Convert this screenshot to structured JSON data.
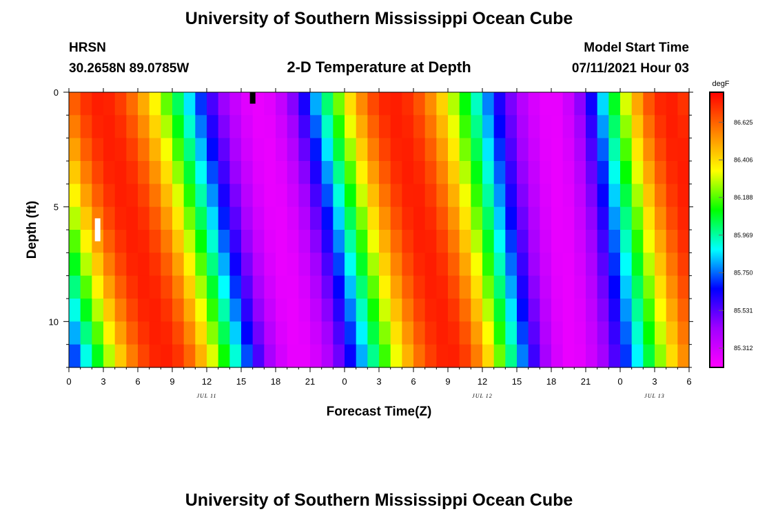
{
  "header": {
    "title": "University of Southern Mississippi Ocean Cube",
    "station": "HRSN",
    "coords": "30.2658N  89.0785W",
    "plot_title": "2-D Temperature at Depth",
    "model_start_label": "Model Start Time",
    "model_start_value": "07/11/2021 Hour 03"
  },
  "footer": {
    "title": "University of Southern Mississippi Ocean Cube"
  },
  "chart_data": {
    "type": "heatmap",
    "xlabel": "Forecast Time(Z)",
    "ylabel": "Depth (ft)",
    "x_unit": "forecast hours",
    "xlim": [
      0,
      54
    ],
    "ylim": [
      0,
      12
    ],
    "y_inverted": true,
    "x_tick_labels": [
      "0",
      "3",
      "6",
      "9",
      "12",
      "15",
      "18",
      "21",
      "0",
      "3",
      "6",
      "9",
      "12",
      "15",
      "18",
      "21",
      "0",
      "3",
      "6"
    ],
    "y_tick_labels": [
      "0",
      "5",
      "10"
    ],
    "y_ticks": [
      0,
      5,
      10
    ],
    "day_labels": [
      {
        "text": "JUL 11",
        "x": 12
      },
      {
        "text": "JUL 12",
        "x": 36
      },
      {
        "text": "JUL 13",
        "x": 51
      }
    ],
    "colorbar": {
      "unit": "degF",
      "min": 85.2,
      "max": 86.8,
      "tick_labels": [
        "86.625",
        "86.406",
        "86.188",
        "85.969",
        "85.750",
        "85.531",
        "85.312"
      ],
      "tick_values": [
        86.625,
        86.406,
        86.188,
        85.969,
        85.75,
        85.531,
        85.312
      ],
      "colormap": [
        "#ff00ff",
        "#a000ff",
        "#0000ff",
        "#00ffff",
        "#00ff00",
        "#ffff00",
        "#ff8000",
        "#ff0000"
      ]
    },
    "hours": 54,
    "depth_levels": [
      0,
      1,
      2,
      3,
      4,
      5,
      6,
      7,
      8,
      9,
      10,
      11
    ],
    "temperature_model": {
      "hot_peak_hours_surface": [
        2.5,
        28.0,
        52.0
      ],
      "cold_trough_hours_surface": [
        16.5,
        42.0
      ],
      "peak_shift_per_ft": [
        0.5,
        0.45,
        0.4
      ],
      "trough_shift_per_ft": [
        0.3,
        0.15
      ],
      "peak_value": 86.75,
      "trough_value": 85.25
    },
    "markers": [
      {
        "hour": 16,
        "depth_from": 0,
        "depth_to": 0.5,
        "color": "#000000"
      },
      {
        "hour": 2.5,
        "depth_from": 5.5,
        "depth_to": 6.5,
        "color": "#ffffff"
      }
    ]
  }
}
